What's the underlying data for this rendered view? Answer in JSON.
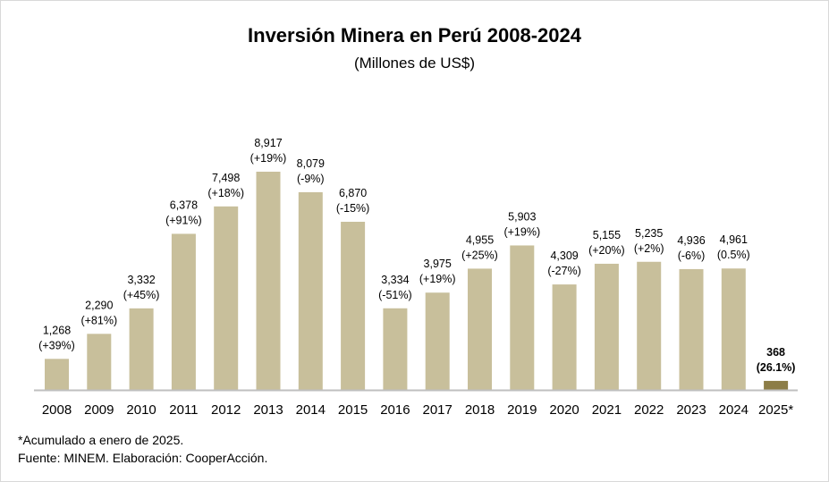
{
  "chart_data": {
    "type": "bar",
    "title": "Inversión Minera en Perú 2008-2024",
    "subtitle": "(Millones de US$)",
    "categories": [
      "2008",
      "2009",
      "2010",
      "2011",
      "2012",
      "2013",
      "2014",
      "2015",
      "2016",
      "2017",
      "2018",
      "2019",
      "2020",
      "2021",
      "2022",
      "2023",
      "2024",
      "2025*"
    ],
    "values": [
      1268,
      2290,
      3332,
      6378,
      7498,
      8917,
      8079,
      6870,
      3334,
      3975,
      4955,
      5903,
      4309,
      5155,
      5235,
      4936,
      4961,
      368
    ],
    "value_labels": [
      "1,268",
      "2,290",
      "3,332",
      "6,378",
      "7,498",
      "8,917",
      "8,079",
      "6,870",
      "3,334",
      "3,975",
      "4,955",
      "5,903",
      "4,309",
      "5,155",
      "5,235",
      "4,936",
      "4,961",
      "368"
    ],
    "change_labels": [
      "(+39%)",
      "(+81%)",
      "(+45%)",
      "(+91%)",
      "(+18%)",
      "(+19%)",
      "(-9%)",
      "(-15%)",
      "(-51%)",
      "(+19%)",
      "(+25%)",
      "(+19%)",
      "(-27%)",
      "(+20%)",
      "(+2%)",
      "(-6%)",
      "(0.5%)",
      "(26.1%)"
    ],
    "bar_color": "#c8bf9b",
    "highlight_color": "#8c7d47",
    "highlight_index": 17,
    "ylim": [
      0,
      9000
    ],
    "grid": false,
    "legend": "none"
  },
  "footnotes": {
    "note": "*Acumulado a enero de 2025.",
    "source": "Fuente: MINEM. Elaboración: CooperAcción."
  }
}
